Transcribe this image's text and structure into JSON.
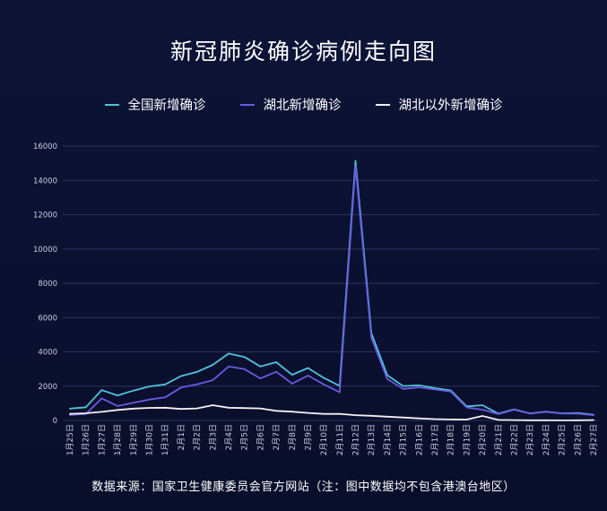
{
  "title": "新冠肺炎确诊病例走向图",
  "source": "数据来源：国家卫生健康委员会官方网站（注：图中数据均不包含港澳台地区）",
  "colors": {
    "background": "#0b1130",
    "grid": "#2a3358",
    "axis_text": "#c8cde0"
  },
  "chart_data": {
    "type": "line",
    "title": "新冠肺炎确诊病例走向图",
    "xlabel": "",
    "ylabel": "",
    "ylim": [
      0,
      16000
    ],
    "yticks": [
      0,
      2000,
      4000,
      6000,
      8000,
      10000,
      12000,
      14000,
      16000
    ],
    "grid": true,
    "legend_position": "top",
    "x": [
      "1月25日",
      "1月26日",
      "1月27日",
      "1月28日",
      "1月29日",
      "1月30日",
      "1月31日",
      "2月1日",
      "2月2日",
      "2月3日",
      "2月4日",
      "2月5日",
      "2月6日",
      "2月7日",
      "2月8日",
      "2月9日",
      "2月10日",
      "2月11日",
      "2月12日",
      "2月13日",
      "2月14日",
      "2月15日",
      "2月16日",
      "2月17日",
      "2月18日",
      "2月19日",
      "2月20日",
      "2月21日",
      "2月22日",
      "2月23日",
      "2月24日",
      "2月25日",
      "2月26日",
      "2月27日"
    ],
    "series": [
      {
        "name": "全国新增确诊",
        "color": "#4fc3d9",
        "values": [
          690,
          770,
          1770,
          1460,
          1740,
          1980,
          2100,
          2590,
          2830,
          3240,
          3900,
          3700,
          3150,
          3400,
          2660,
          3060,
          2480,
          2020,
          15150,
          5090,
          2640,
          2010,
          2050,
          1890,
          1750,
          820,
          890,
          400,
          650,
          410,
          510,
          410,
          440,
          330
        ]
      },
      {
        "name": "湖北新增确诊",
        "color": "#6a5be0",
        "values": [
          320,
          370,
          1290,
          840,
          1030,
          1220,
          1350,
          1920,
          2100,
          2350,
          3150,
          2990,
          2450,
          2840,
          2150,
          2620,
          2100,
          1640,
          14840,
          4820,
          2420,
          1840,
          1930,
          1810,
          1690,
          760,
          630,
          370,
          630,
          400,
          500,
          410,
          400,
          310
        ]
      },
      {
        "name": "湖北以外新增确诊",
        "color": "#f2f2f2",
        "values": [
          380,
          420,
          500,
          610,
          690,
          730,
          740,
          670,
          700,
          890,
          740,
          720,
          700,
          560,
          510,
          440,
          380,
          380,
          310,
          270,
          220,
          170,
          120,
          80,
          60,
          50,
          260,
          30,
          20,
          10,
          10,
          5,
          10,
          20
        ]
      }
    ]
  }
}
